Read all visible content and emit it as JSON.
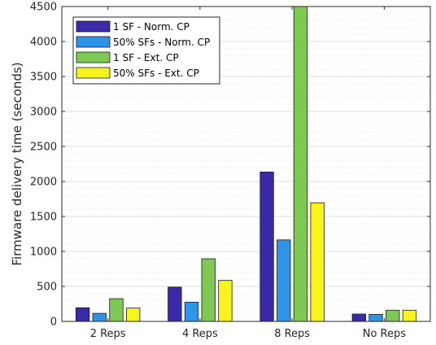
{
  "chart_data": {
    "type": "bar",
    "title": "",
    "xlabel": "",
    "ylabel": "Firmware delivery time (seconds)",
    "categories": [
      "2 Reps",
      "4 Reps",
      "8 Reps",
      "No Reps"
    ],
    "ylim": [
      0,
      4500
    ],
    "yticks": [
      0,
      500,
      1000,
      1500,
      2000,
      2500,
      3000,
      3500,
      4000,
      4500
    ],
    "grid": true,
    "minor_grid": true,
    "legend_position": "top-left",
    "series": [
      {
        "name": "1 SF - Norm. CP",
        "color": "#3a2aaa",
        "values": [
          195,
          490,
          2135,
          105
        ]
      },
      {
        "name": "50% SFs - Norm. CP",
        "color": "#2e94e8",
        "values": [
          115,
          275,
          1165,
          100
        ]
      },
      {
        "name": "1 SF - Ext. CP",
        "color": "#7dc953",
        "values": [
          325,
          895,
          4500,
          160
        ]
      },
      {
        "name": "50% SFs - Ext. CP",
        "color": "#f6f41c",
        "values": [
          190,
          585,
          1695,
          160
        ]
      }
    ]
  }
}
